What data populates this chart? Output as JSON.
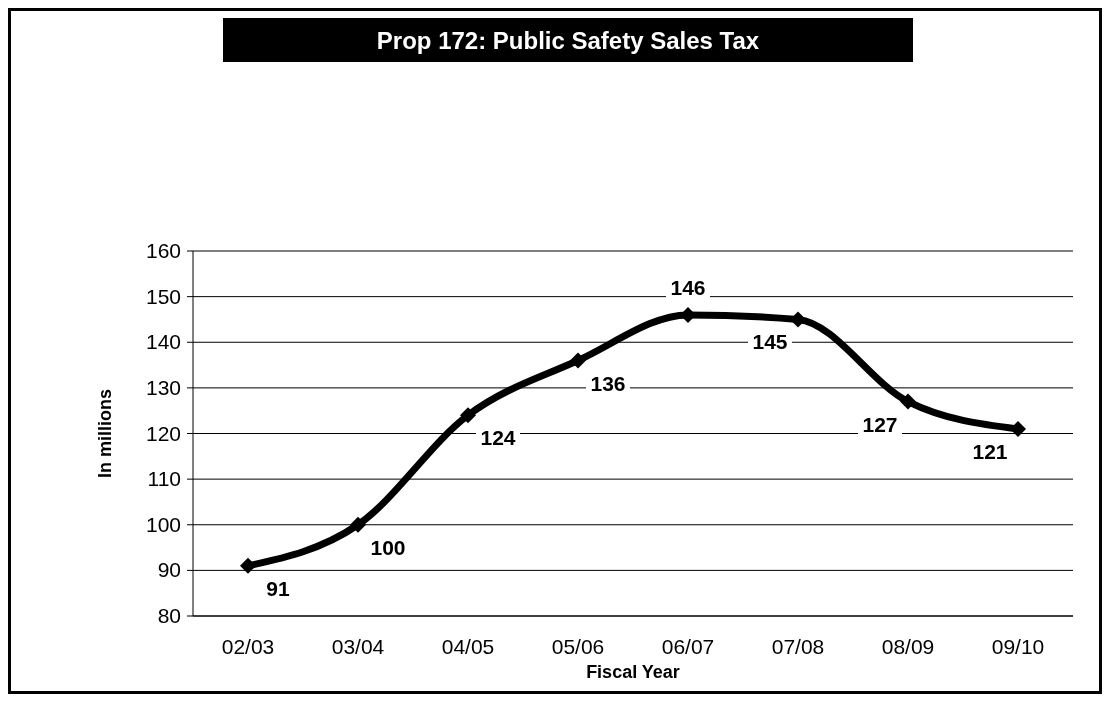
{
  "chart_data": {
    "type": "line",
    "title": "Prop 172: Public Safety Sales Tax",
    "xlabel": "Fiscal Year",
    "ylabel": "In millions",
    "categories": [
      "02/03",
      "03/04",
      "04/05",
      "05/06",
      "06/07",
      "07/08",
      "08/09",
      "09/10"
    ],
    "series": [
      {
        "color": "#000000",
        "values": [
          91,
          100,
          124,
          136,
          146,
          145,
          127,
          121
        ]
      }
    ],
    "ylim": [
      80,
      160
    ],
    "yticks": [
      80,
      90,
      100,
      110,
      120,
      130,
      140,
      150,
      160
    ],
    "grid": "y",
    "marker": "diamond",
    "line_style": "solid",
    "data_labels": true
  }
}
